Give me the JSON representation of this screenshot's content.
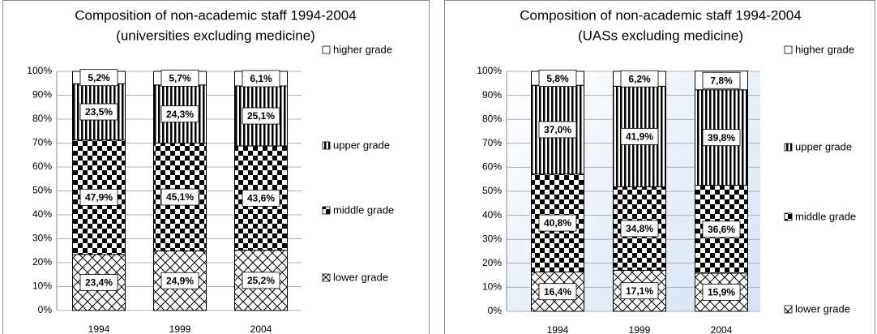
{
  "chart_data": [
    {
      "type": "stacked_bar",
      "title": "Composition of non-academic staff 1994-2004",
      "subtitle": "(universities excluding medicine)",
      "categories": [
        "1994",
        "1999",
        "2004"
      ],
      "series": [
        {
          "name": "lower grade",
          "pattern": "crosshatch",
          "values": [
            23.4,
            24.9,
            25.2
          ],
          "value_labels": [
            "23,4%",
            "24,9%",
            "25,2%"
          ]
        },
        {
          "name": "middle grade",
          "pattern": "checker",
          "values": [
            47.9,
            45.1,
            43.6
          ],
          "value_labels": [
            "47,9%",
            "45,1%",
            "43,6%"
          ]
        },
        {
          "name": "upper grade",
          "pattern": "vstripe",
          "values": [
            23.5,
            24.3,
            25.1
          ],
          "value_labels": [
            "23,5%",
            "24,3%",
            "25,1%"
          ]
        },
        {
          "name": "higher grade",
          "pattern": "none",
          "values": [
            5.2,
            5.7,
            6.1
          ],
          "value_labels": [
            "5,2%",
            "5,7%",
            "6,1%"
          ]
        }
      ],
      "ylim": [
        0,
        100
      ],
      "yticks": [
        {
          "value": 0,
          "label": "0%"
        },
        {
          "value": 10,
          "label": "10%"
        },
        {
          "value": 20,
          "label": "20%"
        },
        {
          "value": 30,
          "label": "30%"
        },
        {
          "value": 40,
          "label": "40%"
        },
        {
          "value": 50,
          "label": "50%"
        },
        {
          "value": 60,
          "label": "60%"
        },
        {
          "value": 70,
          "label": "70%"
        },
        {
          "value": 80,
          "label": "80%"
        },
        {
          "value": 90,
          "label": "90%"
        },
        {
          "value": 100,
          "label": "100%"
        }
      ],
      "grid": true,
      "legend": "right"
    },
    {
      "type": "stacked_bar",
      "title": "Composition of non-academic staff 1994-2004",
      "subtitle": "(UASs excluding medicine)",
      "categories": [
        "1994",
        "1999",
        "2004"
      ],
      "series": [
        {
          "name": "lower grade",
          "pattern": "crosshatch",
          "values": [
            16.4,
            17.1,
            15.9
          ],
          "value_labels": [
            "16,4%",
            "17,1%",
            "15,9%"
          ]
        },
        {
          "name": "middle grade",
          "pattern": "checker",
          "values": [
            40.8,
            34.8,
            36.6
          ],
          "value_labels": [
            "40,8%",
            "34,8%",
            "36,6%"
          ]
        },
        {
          "name": "upper grade",
          "pattern": "vstripe",
          "values": [
            37.0,
            41.9,
            39.8
          ],
          "value_labels": [
            "37,0%",
            "41,9%",
            "39,8%"
          ]
        },
        {
          "name": "higher grade",
          "pattern": "none",
          "values": [
            5.8,
            6.2,
            7.8
          ],
          "value_labels": [
            "5,8%",
            "6,2%",
            "7,8%"
          ]
        }
      ],
      "ylim": [
        0,
        100
      ],
      "yticks": [
        {
          "value": 0,
          "label": "0%"
        },
        {
          "value": 10,
          "label": "10%"
        },
        {
          "value": 20,
          "label": "20%"
        },
        {
          "value": 30,
          "label": "30%"
        },
        {
          "value": 40,
          "label": "40%"
        },
        {
          "value": 50,
          "label": "50%"
        },
        {
          "value": 60,
          "label": "60%"
        },
        {
          "value": 70,
          "label": "70%"
        },
        {
          "value": 80,
          "label": "80%"
        },
        {
          "value": 90,
          "label": "90%"
        },
        {
          "value": 100,
          "label": "100%"
        }
      ],
      "grid": true,
      "legend": "right",
      "background": "gradient"
    }
  ]
}
